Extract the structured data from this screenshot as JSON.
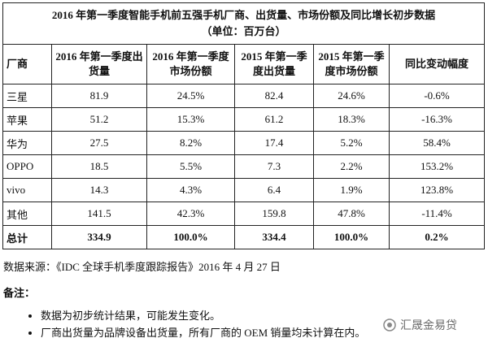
{
  "title": "2016 年第一季度智能手机前五强手机厂商、出货量、市场份额及同比增长初步数据",
  "subtitle": "（单位：百万台）",
  "table": {
    "header": [
      "厂商",
      "2016 年第一季度出货量",
      "2016 年第一季度市场份额",
      "2015 年第一季度出货量",
      "2015 年第一季度市场份额",
      "同比变动幅度"
    ],
    "rows": [
      [
        "三星",
        "81.9",
        "24.5%",
        "82.4",
        "24.6%",
        "-0.6%"
      ],
      [
        "苹果",
        "51.2",
        "15.3%",
        "61.2",
        "18.3%",
        "-16.3%"
      ],
      [
        "华为",
        "27.5",
        "8.2%",
        "17.4",
        "5.2%",
        "58.4%"
      ],
      [
        "OPPO",
        "18.5",
        "5.5%",
        "7.3",
        "2.2%",
        "153.2%"
      ],
      [
        "vivo",
        "14.3",
        "4.3%",
        "6.4",
        "1.9%",
        "123.8%"
      ],
      [
        "其他",
        "141.5",
        "42.3%",
        "159.8",
        "47.8%",
        "-11.4%"
      ]
    ],
    "total": [
      "总计",
      "334.9",
      "100.0%",
      "334.4",
      "100.0%",
      "0.2%"
    ]
  },
  "source": "数据来源：《IDC 全球手机季度跟踪报告》2016 年 4 月 27 日",
  "notes": {
    "title": "备注：",
    "items": [
      "数据为初步统计结果，可能发生变化。",
      "厂商出货量为品牌设备出货量，所有厂商的 OEM 销量均未计算在内。"
    ]
  },
  "watermark": "汇晟金易贷"
}
